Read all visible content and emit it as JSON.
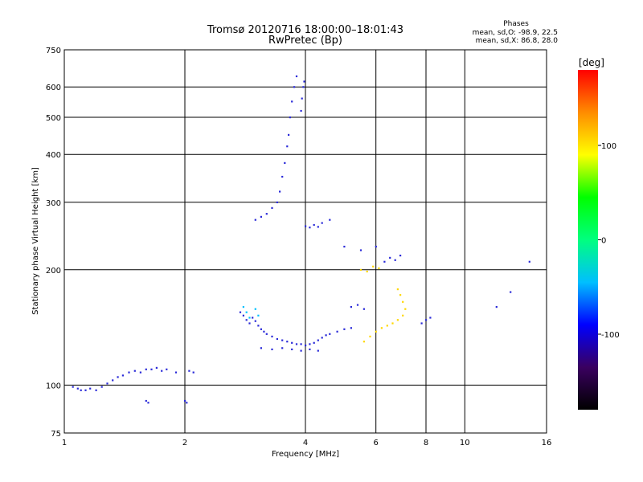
{
  "chart_data": {
    "type": "scatter",
    "title": "Tromsø 20120716 18:00:00–18:01:43",
    "subtitle": "RwPretec (Bp)",
    "xlabel": "Frequency [MHz]",
    "ylabel": "Stationary phase Virtual Height [km]",
    "x_scale": "log",
    "y_scale": "log",
    "xlim": [
      1,
      16
    ],
    "ylim": [
      75,
      750
    ],
    "x_ticks": [
      1,
      2,
      4,
      6,
      8,
      10,
      16
    ],
    "y_ticks": [
      75,
      100,
      200,
      300,
      400,
      500,
      600,
      750
    ],
    "grid": true,
    "stats": {
      "heading": "Phases",
      "line_o": "mean, sd,O: -98.9, 22.5",
      "line_x": "mean, sd,X: 86.8, 28.0"
    },
    "colorbar": {
      "label": "[deg]",
      "range": [
        -180,
        180
      ],
      "ticks": [
        100,
        0,
        -100
      ],
      "colors": [
        "#000000",
        "#3a0060",
        "#0000ff",
        "#00bfff",
        "#00ff7f",
        "#00ff00",
        "#ffff00",
        "#ff8c00",
        "#ff0000"
      ]
    },
    "series": [
      {
        "name": "",
        "color": "#2a2ad8",
        "points": [
          [
            1.05,
            99
          ],
          [
            1.08,
            98
          ],
          [
            1.1,
            97
          ],
          [
            1.13,
            97
          ],
          [
            1.16,
            98
          ],
          [
            1.2,
            97
          ],
          [
            1.24,
            99
          ],
          [
            1.28,
            101
          ],
          [
            1.32,
            103
          ],
          [
            1.36,
            105
          ],
          [
            1.4,
            106
          ],
          [
            1.45,
            108
          ],
          [
            1.5,
            109
          ],
          [
            1.55,
            108
          ],
          [
            1.6,
            110
          ],
          [
            1.65,
            110
          ],
          [
            1.7,
            111
          ],
          [
            1.75,
            109
          ],
          [
            1.8,
            110
          ],
          [
            1.9,
            108
          ],
          [
            2.05,
            109
          ],
          [
            2.1,
            108
          ],
          [
            1.6,
            91
          ],
          [
            1.62,
            90
          ],
          [
            2.0,
            91
          ],
          [
            2.02,
            90
          ],
          [
            2.75,
            155
          ],
          [
            2.8,
            152
          ],
          [
            2.85,
            148
          ],
          [
            2.9,
            145
          ],
          [
            2.95,
            150
          ],
          [
            3.0,
            147
          ],
          [
            3.05,
            143
          ],
          [
            3.1,
            140
          ],
          [
            3.15,
            138
          ],
          [
            3.2,
            136
          ],
          [
            3.3,
            134
          ],
          [
            3.4,
            132
          ],
          [
            3.5,
            131
          ],
          [
            3.6,
            130
          ],
          [
            3.7,
            129
          ],
          [
            3.8,
            128
          ],
          [
            3.9,
            128
          ],
          [
            4.0,
            127
          ],
          [
            4.1,
            128
          ],
          [
            4.2,
            129
          ],
          [
            4.3,
            131
          ],
          [
            4.4,
            133
          ],
          [
            4.5,
            135
          ],
          [
            4.6,
            136
          ],
          [
            4.8,
            138
          ],
          [
            5.0,
            140
          ],
          [
            5.2,
            141
          ],
          [
            3.1,
            125
          ],
          [
            3.3,
            124
          ],
          [
            3.5,
            125
          ],
          [
            3.7,
            124
          ],
          [
            3.9,
            123
          ],
          [
            4.1,
            124
          ],
          [
            4.3,
            123
          ],
          [
            3.0,
            270
          ],
          [
            3.1,
            275
          ],
          [
            3.2,
            280
          ],
          [
            3.3,
            290
          ],
          [
            3.4,
            300
          ],
          [
            3.45,
            320
          ],
          [
            3.5,
            350
          ],
          [
            3.55,
            380
          ],
          [
            3.6,
            420
          ],
          [
            3.63,
            450
          ],
          [
            3.66,
            500
          ],
          [
            3.7,
            550
          ],
          [
            3.75,
            600
          ],
          [
            3.8,
            640
          ],
          [
            3.9,
            520
          ],
          [
            3.92,
            560
          ],
          [
            3.95,
            600
          ],
          [
            3.97,
            620
          ],
          [
            4.0,
            260
          ],
          [
            4.1,
            258
          ],
          [
            4.2,
            262
          ],
          [
            4.3,
            259
          ],
          [
            4.4,
            265
          ],
          [
            4.6,
            270
          ],
          [
            6.3,
            210
          ],
          [
            6.5,
            215
          ],
          [
            6.7,
            212
          ],
          [
            6.9,
            218
          ],
          [
            5.2,
            160
          ],
          [
            5.4,
            162
          ],
          [
            5.6,
            158
          ],
          [
            7.8,
            145
          ],
          [
            8.0,
            148
          ],
          [
            8.2,
            150
          ],
          [
            5.0,
            230
          ],
          [
            5.5,
            225
          ],
          [
            6.0,
            230
          ],
          [
            12.0,
            160
          ],
          [
            13.0,
            175
          ],
          [
            14.5,
            210
          ]
        ]
      },
      {
        "name": "",
        "color": "#ffd700",
        "points": [
          [
            5.6,
            130
          ],
          [
            5.8,
            134
          ],
          [
            6.0,
            138
          ],
          [
            6.2,
            141
          ],
          [
            6.4,
            143
          ],
          [
            6.6,
            145
          ],
          [
            6.8,
            148
          ],
          [
            7.0,
            152
          ],
          [
            7.1,
            158
          ],
          [
            7.0,
            165
          ],
          [
            6.9,
            172
          ],
          [
            6.8,
            178
          ],
          [
            5.5,
            200
          ],
          [
            5.7,
            198
          ],
          [
            5.9,
            204
          ],
          [
            6.1,
            202
          ]
        ]
      },
      {
        "name": "",
        "color": "#00c0ff",
        "points": [
          [
            2.8,
            160
          ],
          [
            2.85,
            155
          ],
          [
            2.9,
            150
          ],
          [
            3.0,
            158
          ],
          [
            3.05,
            152
          ]
        ]
      }
    ]
  }
}
